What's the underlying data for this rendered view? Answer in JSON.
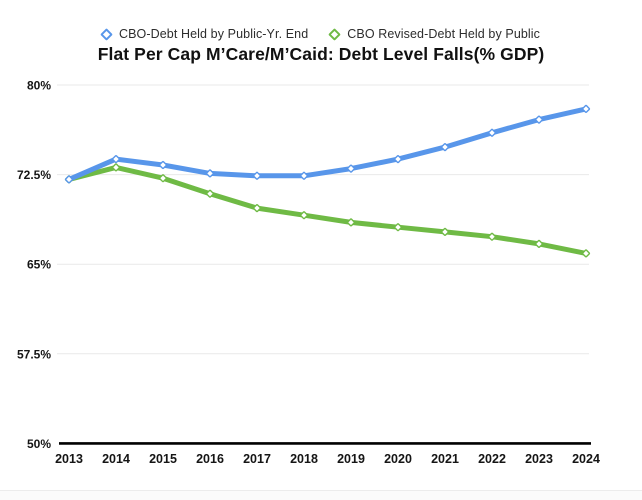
{
  "page": {
    "background": "#ffffff",
    "bottom_divider_color": "#ececec"
  },
  "chart_data": {
    "type": "line",
    "title": "Flat Per Cap M’Care/M’Caid: Debt Level Falls(% GDP)",
    "xlabel": "",
    "ylabel": "",
    "x": [
      2013,
      2014,
      2015,
      2016,
      2017,
      2018,
      2019,
      2020,
      2021,
      2022,
      2023,
      2024
    ],
    "x_tick_labels": [
      "2013",
      "2014",
      "2015",
      "2016",
      "2017",
      "2018",
      "2019",
      "2020",
      "2021",
      "2022",
      "2023",
      "2024"
    ],
    "y_tick_values": [
      80,
      72.5,
      65,
      57.5,
      50
    ],
    "y_tick_labels": [
      "80%",
      "72.5%",
      "65%",
      "57.5%",
      "50%"
    ],
    "ylim": [
      50,
      80
    ],
    "grid": "horizontal-light",
    "gridline_color": "#e9e9e9",
    "baseline_color": "#000000",
    "legend_position": "top-center",
    "marker_style": "open-diamond",
    "series": [
      {
        "name": "CBO-Debt Held by Public-Yr. End",
        "color": "#5896ea",
        "values": [
          72.1,
          73.8,
          73.3,
          72.6,
          72.4,
          72.4,
          73.0,
          73.8,
          74.8,
          76.0,
          77.1,
          78.0
        ]
      },
      {
        "name": "CBO Revised-Debt Held by Public",
        "color": "#6fba45",
        "values": [
          72.1,
          73.1,
          72.2,
          70.9,
          69.7,
          69.1,
          68.5,
          68.1,
          67.7,
          67.3,
          66.7,
          65.9
        ]
      }
    ]
  }
}
